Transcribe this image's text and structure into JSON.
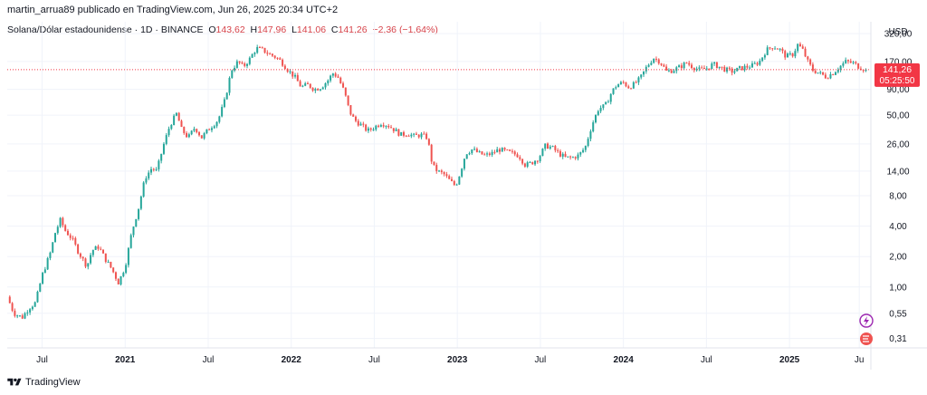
{
  "header": {
    "publisher_line": "martin_arrua89 publicado en TradingView.com, Jun 26, 2025 20:34 UTC+2"
  },
  "legend": {
    "symbol": "Solana/Dólar estadounidense · 1D · BINANCE",
    "o_label": "O",
    "o_value": "143,62",
    "h_label": "H",
    "h_value": "147,96",
    "l_label": "L",
    "l_value": "141,06",
    "c_label": "C",
    "c_value": "141,26",
    "change": "−2,36 (−1,64%)"
  },
  "price_tag": {
    "price": "141,26",
    "countdown": "05:25:50"
  },
  "footer": {
    "brand": "TradingView"
  },
  "colors": {
    "up": "#26a69a",
    "down": "#ef5350",
    "tag": "#f23645",
    "grid": "#f0f3fa",
    "text": "#131722"
  },
  "chart_data": {
    "type": "candlestick",
    "title": "Solana/Dólar estadounidense · 1D · BINANCE",
    "yscale": "log",
    "currency": "USD",
    "y_ticks": [
      "320,00",
      "170,00",
      "90,00",
      "50,00",
      "26,00",
      "14,00",
      "8,00",
      "4,00",
      "2,00",
      "1,00",
      "0,55",
      "0,31"
    ],
    "y_tick_values": [
      320,
      170,
      90,
      50,
      26,
      14,
      8,
      4,
      2,
      1,
      0.55,
      0.31
    ],
    "x_ticks": [
      "Jul",
      "2021",
      "Jul",
      "2022",
      "Jul",
      "2023",
      "Jul",
      "2024",
      "Jul",
      "2025",
      "Ju"
    ],
    "x_tick_dates": [
      2020.5,
      2021.0,
      2021.5,
      2022.0,
      2022.5,
      2023.0,
      2023.5,
      2024.0,
      2024.5,
      2025.0,
      2025.42
    ],
    "x_range": [
      2020.29,
      2025.49
    ],
    "ylim": [
      0.25,
      420
    ],
    "last_price": 141.26,
    "price_path": [
      [
        2020.29,
        0.8
      ],
      [
        2020.33,
        0.55
      ],
      [
        2020.38,
        0.5
      ],
      [
        2020.42,
        0.62
      ],
      [
        2020.46,
        0.7
      ],
      [
        2020.5,
        1.3
      ],
      [
        2020.55,
        2.2
      ],
      [
        2020.58,
        3.5
      ],
      [
        2020.61,
        4.6
      ],
      [
        2020.64,
        3.6
      ],
      [
        2020.68,
        3.0
      ],
      [
        2020.72,
        2.2
      ],
      [
        2020.77,
        1.6
      ],
      [
        2020.8,
        2.3
      ],
      [
        2020.84,
        2.5
      ],
      [
        2020.88,
        1.9
      ],
      [
        2020.92,
        1.5
      ],
      [
        2020.96,
        1.1
      ],
      [
        2021.0,
        1.6
      ],
      [
        2021.04,
        3.5
      ],
      [
        2021.08,
        6
      ],
      [
        2021.12,
        12
      ],
      [
        2021.16,
        15
      ],
      [
        2021.19,
        14
      ],
      [
        2021.23,
        25
      ],
      [
        2021.27,
        40
      ],
      [
        2021.31,
        52
      ],
      [
        2021.34,
        36
      ],
      [
        2021.38,
        30
      ],
      [
        2021.42,
        38
      ],
      [
        2021.46,
        30
      ],
      [
        2021.5,
        36
      ],
      [
        2021.56,
        45
      ],
      [
        2021.6,
        70
      ],
      [
        2021.64,
        140
      ],
      [
        2021.68,
        170
      ],
      [
        2021.71,
        150
      ],
      [
        2021.75,
        180
      ],
      [
        2021.79,
        230
      ],
      [
        2021.83,
        220
      ],
      [
        2021.87,
        200
      ],
      [
        2021.9,
        190
      ],
      [
        2021.94,
        170
      ],
      [
        2021.98,
        140
      ],
      [
        2022.02,
        120
      ],
      [
        2022.06,
        95
      ],
      [
        2022.1,
        100
      ],
      [
        2022.14,
        90
      ],
      [
        2022.18,
        95
      ],
      [
        2022.22,
        110
      ],
      [
        2022.25,
        130
      ],
      [
        2022.28,
        120
      ],
      [
        2022.32,
        85
      ],
      [
        2022.35,
        55
      ],
      [
        2022.38,
        45
      ],
      [
        2022.42,
        40
      ],
      [
        2022.46,
        35
      ],
      [
        2022.5,
        38
      ],
      [
        2022.54,
        42
      ],
      [
        2022.58,
        40
      ],
      [
        2022.62,
        36
      ],
      [
        2022.66,
        32
      ],
      [
        2022.7,
        33
      ],
      [
        2022.74,
        31
      ],
      [
        2022.78,
        32
      ],
      [
        2022.82,
        30
      ],
      [
        2022.85,
        16
      ],
      [
        2022.88,
        14
      ],
      [
        2022.92,
        13
      ],
      [
        2022.96,
        11
      ],
      [
        2022.99,
        10
      ],
      [
        2023.02,
        14
      ],
      [
        2023.05,
        21
      ],
      [
        2023.09,
        23
      ],
      [
        2023.13,
        21
      ],
      [
        2023.17,
        20
      ],
      [
        2023.21,
        21
      ],
      [
        2023.25,
        23
      ],
      [
        2023.29,
        22
      ],
      [
        2023.33,
        21
      ],
      [
        2023.37,
        20
      ],
      [
        2023.41,
        16
      ],
      [
        2023.45,
        17
      ],
      [
        2023.49,
        19
      ],
      [
        2023.53,
        25
      ],
      [
        2023.57,
        24
      ],
      [
        2023.61,
        21
      ],
      [
        2023.65,
        19
      ],
      [
        2023.69,
        19
      ],
      [
        2023.73,
        20
      ],
      [
        2023.77,
        24
      ],
      [
        2023.81,
        40
      ],
      [
        2023.85,
        58
      ],
      [
        2023.89,
        62
      ],
      [
        2023.93,
        85
      ],
      [
        2023.96,
        100
      ],
      [
        2024.0,
        105
      ],
      [
        2024.03,
        95
      ],
      [
        2024.06,
        100
      ],
      [
        2024.1,
        115
      ],
      [
        2024.14,
        150
      ],
      [
        2024.18,
        185
      ],
      [
        2024.22,
        170
      ],
      [
        2024.26,
        135
      ],
      [
        2024.3,
        140
      ],
      [
        2024.34,
        150
      ],
      [
        2024.38,
        165
      ],
      [
        2024.42,
        150
      ],
      [
        2024.46,
        140
      ],
      [
        2024.5,
        145
      ],
      [
        2024.54,
        160
      ],
      [
        2024.58,
        150
      ],
      [
        2024.62,
        140
      ],
      [
        2024.66,
        135
      ],
      [
        2024.7,
        145
      ],
      [
        2024.74,
        150
      ],
      [
        2024.78,
        155
      ],
      [
        2024.82,
        170
      ],
      [
        2024.86,
        220
      ],
      [
        2024.9,
        240
      ],
      [
        2024.94,
        225
      ],
      [
        2024.98,
        190
      ],
      [
        2025.02,
        200
      ],
      [
        2025.05,
        250
      ],
      [
        2025.08,
        220
      ],
      [
        2025.11,
        170
      ],
      [
        2025.14,
        140
      ],
      [
        2025.18,
        130
      ],
      [
        2025.22,
        120
      ],
      [
        2025.26,
        130
      ],
      [
        2025.3,
        150
      ],
      [
        2025.34,
        170
      ],
      [
        2025.38,
        165
      ],
      [
        2025.42,
        150
      ],
      [
        2025.46,
        141.26
      ]
    ]
  }
}
